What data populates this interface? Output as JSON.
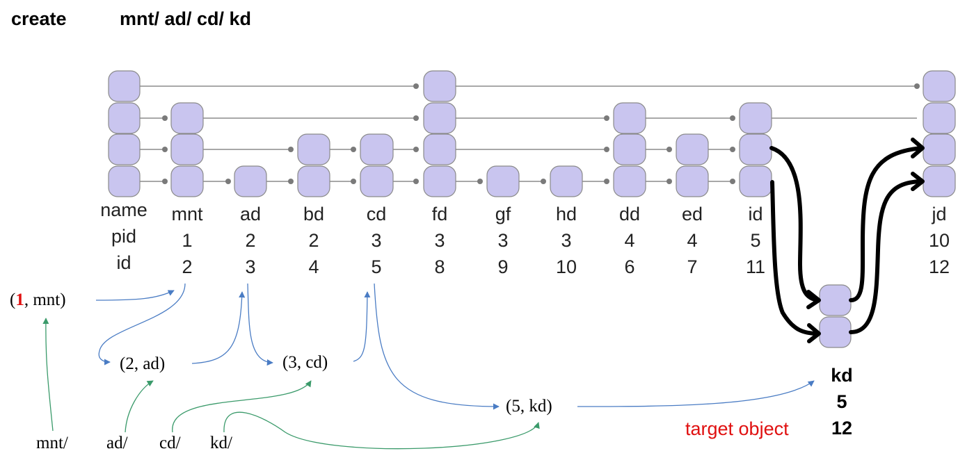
{
  "header": {
    "command": "create",
    "path": "mnt/ ad/ cd/ kd"
  },
  "row_labels": [
    "name",
    "pid",
    "id"
  ],
  "columns": [
    {
      "name": "mnt",
      "pid": "1",
      "id": "2"
    },
    {
      "name": "ad",
      "pid": "2",
      "id": "3"
    },
    {
      "name": "bd",
      "pid": "2",
      "id": "4"
    },
    {
      "name": "cd",
      "pid": "3",
      "id": "5"
    },
    {
      "name": "fd",
      "pid": "3",
      "id": "8"
    },
    {
      "name": "gf",
      "pid": "3",
      "id": "9"
    },
    {
      "name": "hd",
      "pid": "3",
      "id": "10"
    },
    {
      "name": "dd",
      "pid": "4",
      "id": "6"
    },
    {
      "name": "ed",
      "pid": "4",
      "id": "7"
    },
    {
      "name": "id",
      "pid": "5",
      "id": "11"
    },
    {
      "name": "jd",
      "pid": "10",
      "id": "12"
    }
  ],
  "tuples": {
    "t1_num": "1",
    "t1_rest": ", mnt)",
    "t1_open": "(",
    "t2": "(2, ad)",
    "t3": "(3, cd)",
    "t4": "(5, kd)"
  },
  "path_parts": [
    "mnt/",
    "ad/",
    "cd/",
    "kd/"
  ],
  "target": {
    "name": "kd",
    "pid": "5",
    "id": "12",
    "label": "target object"
  },
  "colors": {
    "node_fill": "#c9c5ef",
    "node_stroke": "#8a8a8a",
    "link": "#8c8c8c",
    "blue_arrow": "#4a7cc4",
    "green_arrow": "#3a9a6a",
    "red": "#e01010"
  }
}
